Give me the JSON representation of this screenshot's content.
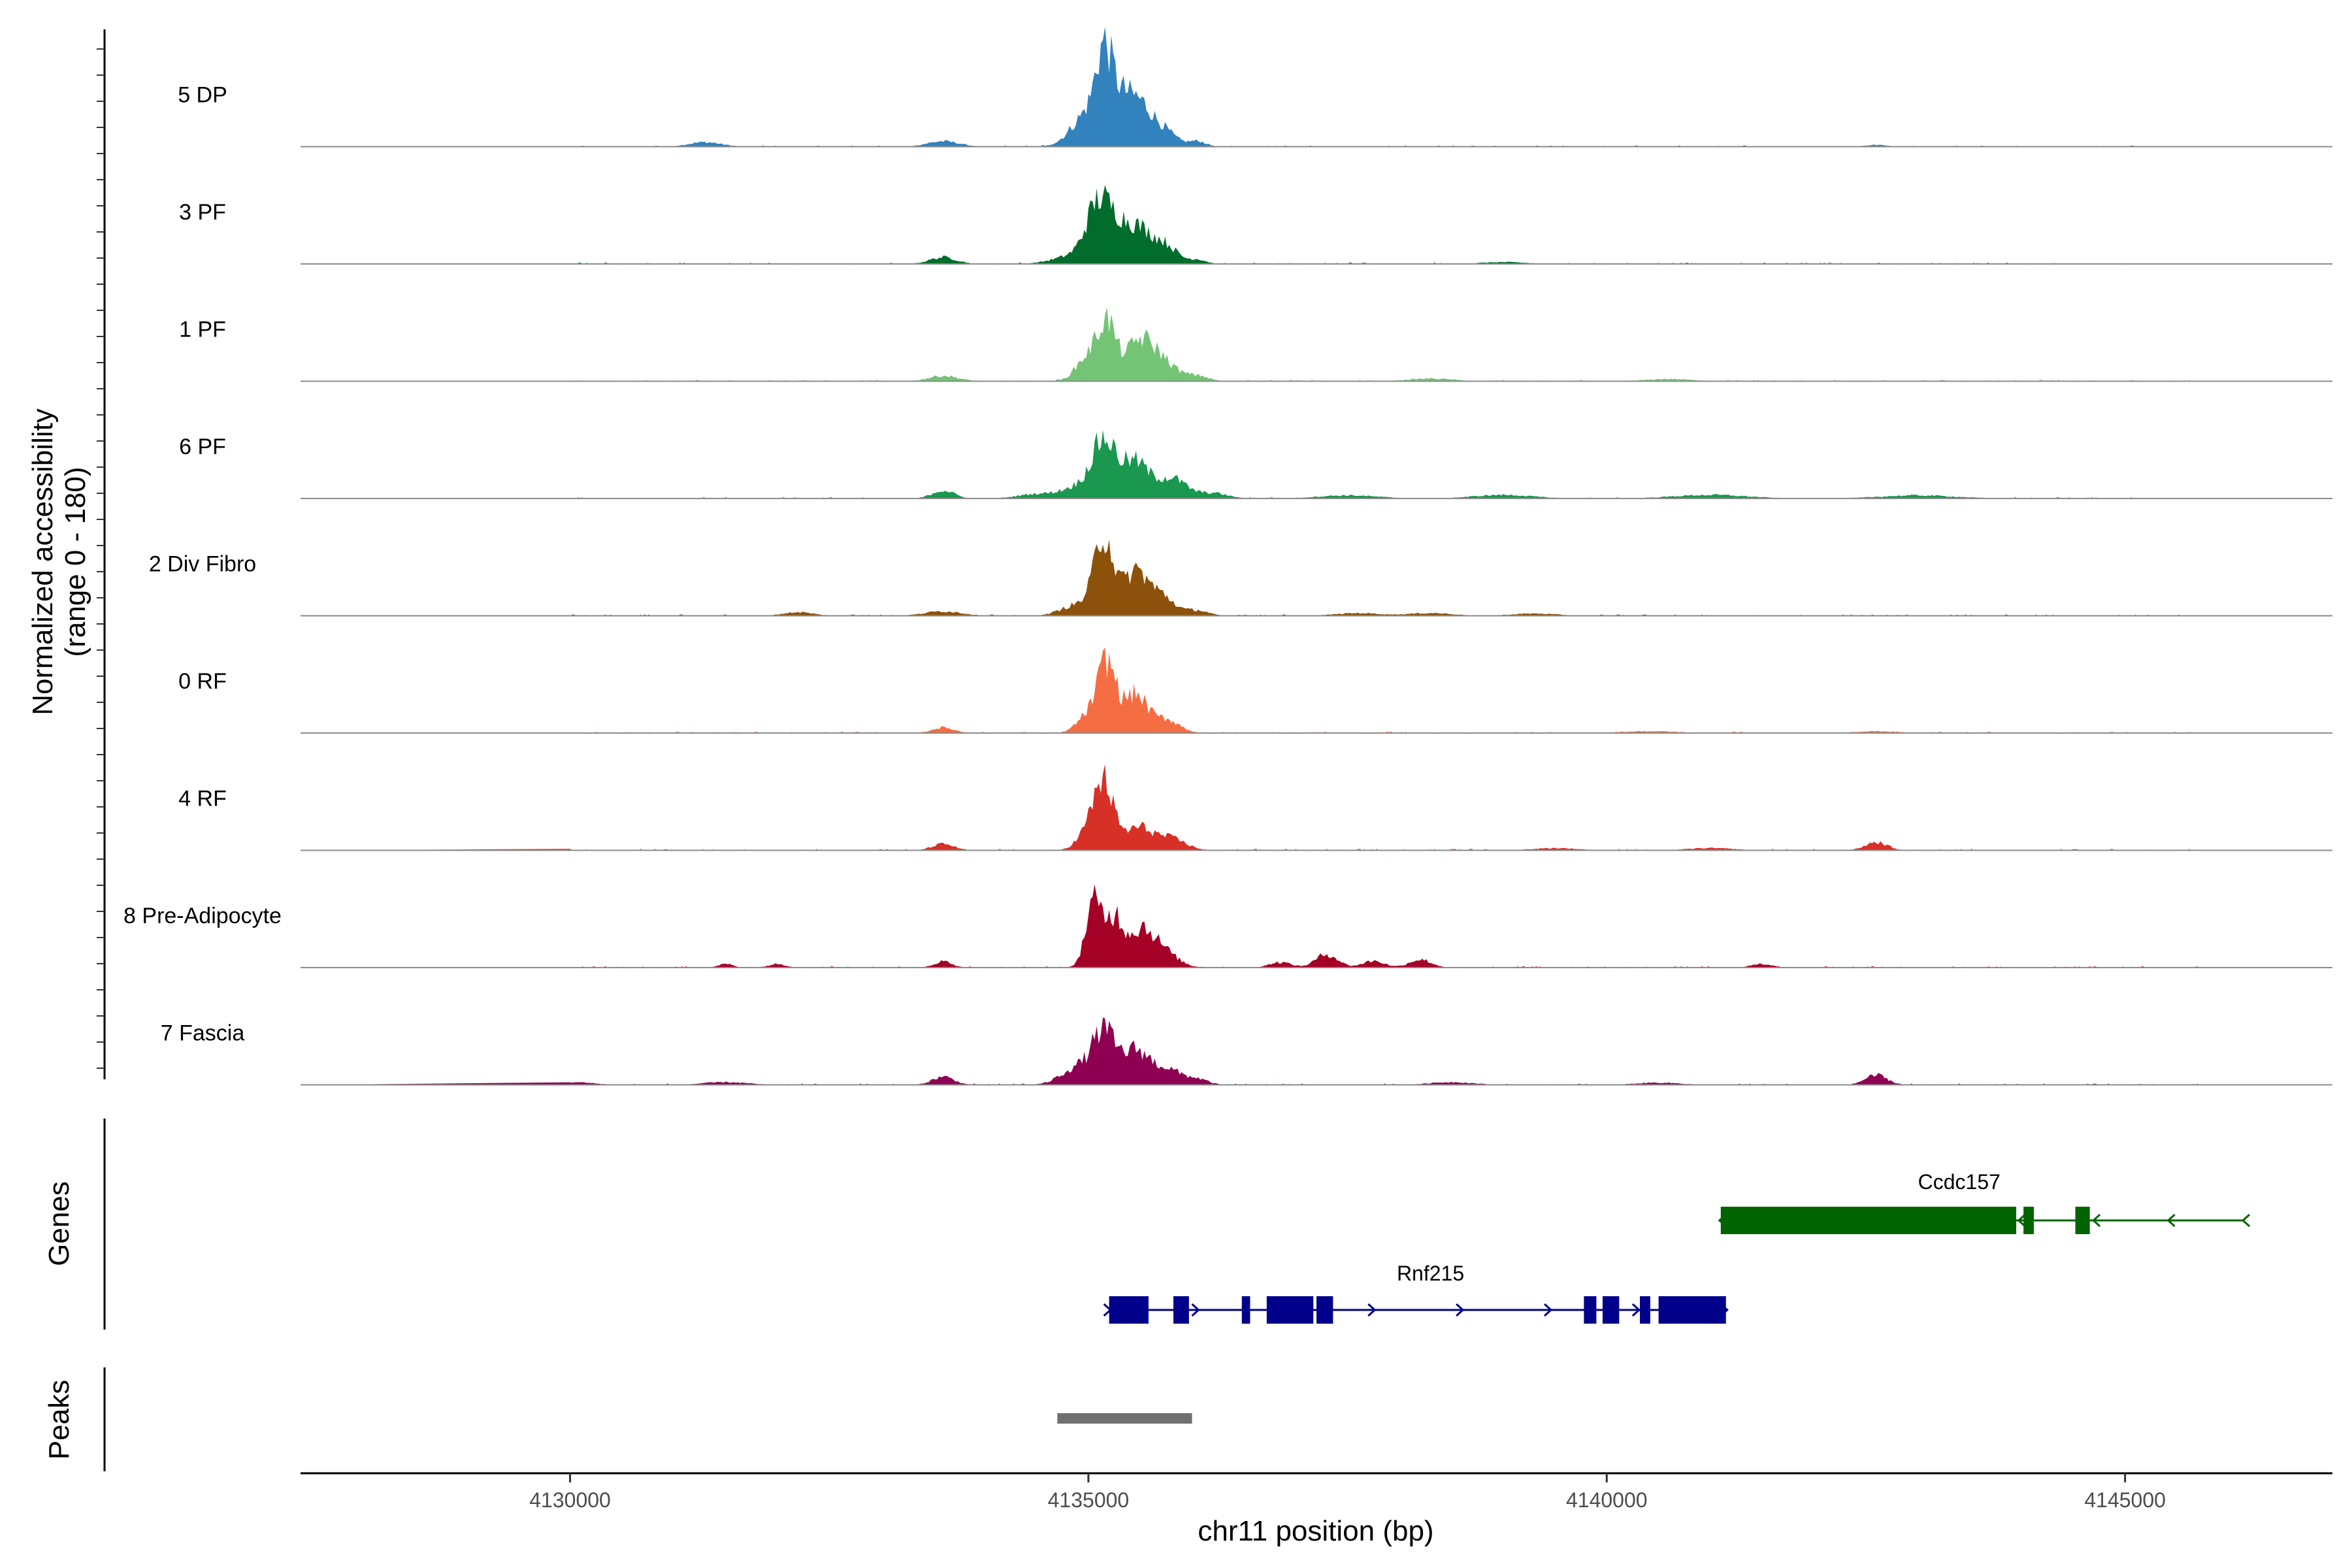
{
  "chart_data": {
    "type": "area",
    "chromosome": "chr11",
    "xlabel": "chr11 position (bp)",
    "ylabel_line1": "Normalized accessibility",
    "ylabel_line2": "(range 0 - 180)",
    "xlim": [
      4127400,
      4147000
    ],
    "x_ticks": [
      {
        "value": 4130000,
        "label": "4130000"
      },
      {
        "value": 4135000,
        "label": "4135000"
      },
      {
        "value": 4140000,
        "label": "4140000"
      },
      {
        "value": 4145000,
        "label": "4145000"
      }
    ],
    "tracks": [
      {
        "name": "5 DP",
        "color": "#3182BD",
        "peaks": [
          [
            4131300,
            10,
            220
          ],
          [
            4133600,
            12,
            220
          ],
          [
            4135000,
            75,
            220
          ],
          [
            4135150,
            160,
            110
          ],
          [
            4135300,
            80,
            140
          ],
          [
            4135480,
            85,
            160
          ],
          [
            4135700,
            40,
            180
          ],
          [
            4136050,
            12,
            120
          ],
          [
            4142600,
            4,
            150
          ]
        ]
      },
      {
        "name": "3 PF",
        "color": "#006D2C",
        "peaks": [
          [
            4133600,
            15,
            180
          ],
          [
            4134900,
            20,
            300
          ],
          [
            4135100,
            125,
            160
          ],
          [
            4135300,
            60,
            150
          ],
          [
            4135500,
            70,
            180
          ],
          [
            4135750,
            38,
            160
          ],
          [
            4136050,
            10,
            120
          ],
          [
            4139000,
            4,
            300
          ]
        ]
      },
      {
        "name": "1 PF",
        "color": "#74C476",
        "peaks": [
          [
            4133600,
            12,
            200
          ],
          [
            4135000,
            55,
            160
          ],
          [
            4135180,
            120,
            120
          ],
          [
            4135480,
            80,
            180
          ],
          [
            4135700,
            45,
            200
          ],
          [
            4136050,
            12,
            150
          ],
          [
            4138300,
            6,
            300
          ],
          [
            4140600,
            5,
            300
          ],
          [
            4128500,
            4,
            200
          ]
        ]
      },
      {
        "name": "6 PF",
        "color": "#1A9850",
        "peaks": [
          [
            4133600,
            18,
            150
          ],
          [
            4134500,
            10,
            250
          ],
          [
            4134900,
            25,
            220
          ],
          [
            4135150,
            125,
            160
          ],
          [
            4135450,
            80,
            180
          ],
          [
            4135800,
            45,
            200
          ],
          [
            4136200,
            12,
            200
          ],
          [
            4137500,
            7,
            400
          ],
          [
            4139000,
            8,
            400
          ],
          [
            4141000,
            8,
            500
          ],
          [
            4143000,
            7,
            500
          ],
          [
            4129500,
            6,
            200
          ]
        ]
      },
      {
        "name": "2 Div Fibro",
        "color": "#8C510A",
        "peaks": [
          [
            4132200,
            8,
            200
          ],
          [
            4133600,
            10,
            250
          ],
          [
            4134900,
            25,
            220
          ],
          [
            4135150,
            175,
            130
          ],
          [
            4135450,
            95,
            160
          ],
          [
            4135700,
            45,
            180
          ],
          [
            4136050,
            12,
            150
          ],
          [
            4137600,
            6,
            300
          ],
          [
            4138300,
            6,
            300
          ],
          [
            4139300,
            5,
            300
          ]
        ]
      },
      {
        "name": "0 RF",
        "color": "#F46D43",
        "peaks": [
          [
            4133600,
            12,
            150
          ],
          [
            4135000,
            40,
            150
          ],
          [
            4135180,
            150,
            120
          ],
          [
            4135450,
            85,
            160
          ],
          [
            4135750,
            30,
            180
          ],
          [
            4140400,
            4,
            400
          ],
          [
            4142600,
            4,
            300
          ]
        ]
      },
      {
        "name": "4 RF",
        "color": "#D73027",
        "peaks": [
          [
            4133600,
            14,
            150
          ],
          [
            4135000,
            40,
            150
          ],
          [
            4135150,
            140,
            130
          ],
          [
            4135480,
            50,
            200
          ],
          [
            4135800,
            25,
            200
          ],
          [
            4142600,
            18,
            150
          ],
          [
            4141000,
            5,
            300
          ],
          [
            4139500,
            5,
            300
          ]
        ]
      },
      {
        "name": "8 Pre-Adipocyte",
        "color": "#A50026",
        "peaks": [
          [
            4135050,
            140,
            110
          ],
          [
            4135250,
            110,
            120
          ],
          [
            4135500,
            75,
            160
          ],
          [
            4135700,
            40,
            200
          ],
          [
            4133600,
            14,
            120
          ],
          [
            4137300,
            30,
            150
          ],
          [
            4136850,
            12,
            150
          ],
          [
            4137750,
            15,
            150
          ],
          [
            4138200,
            18,
            150
          ],
          [
            4132000,
            8,
            120
          ],
          [
            4141500,
            8,
            150
          ],
          [
            4131500,
            8,
            100
          ]
        ]
      },
      {
        "name": "7 Fascia",
        "color": "#8E0152",
        "peaks": [
          [
            4133600,
            18,
            150
          ],
          [
            4134900,
            40,
            220
          ],
          [
            4135150,
            110,
            150
          ],
          [
            4135450,
            75,
            180
          ],
          [
            4135750,
            35,
            200
          ],
          [
            4136050,
            12,
            150
          ],
          [
            4142600,
            22,
            150
          ],
          [
            4130000,
            6,
            300
          ],
          [
            4131500,
            6,
            300
          ],
          [
            4138500,
            6,
            300
          ],
          [
            4140500,
            5,
            300
          ]
        ]
      }
    ],
    "genes_track_label": "Genes",
    "peaks_track_label": "Peaks",
    "genes": [
      {
        "name": "Ccdc157",
        "color": "#006400",
        "strand": "-",
        "start": 4141100,
        "end": 4146150,
        "exons": [
          [
            4141100,
            4143950
          ],
          [
            4144020,
            4144120
          ],
          [
            4144520,
            4144660
          ]
        ]
      },
      {
        "name": "Rnf215",
        "color": "#00008B",
        "strand": "+",
        "start": 4135200,
        "end": 4141150,
        "exons": [
          [
            4135200,
            4135580
          ],
          [
            4135820,
            4135970
          ],
          [
            4136480,
            4136560
          ],
          [
            4136720,
            4137170
          ],
          [
            4137200,
            4137360
          ],
          [
            4139780,
            4139900
          ],
          [
            4139960,
            4140120
          ],
          [
            4140320,
            4140420
          ],
          [
            4140500,
            4141150
          ]
        ]
      }
    ],
    "peak_regions": [
      [
        4134700,
        4136000
      ]
    ]
  }
}
